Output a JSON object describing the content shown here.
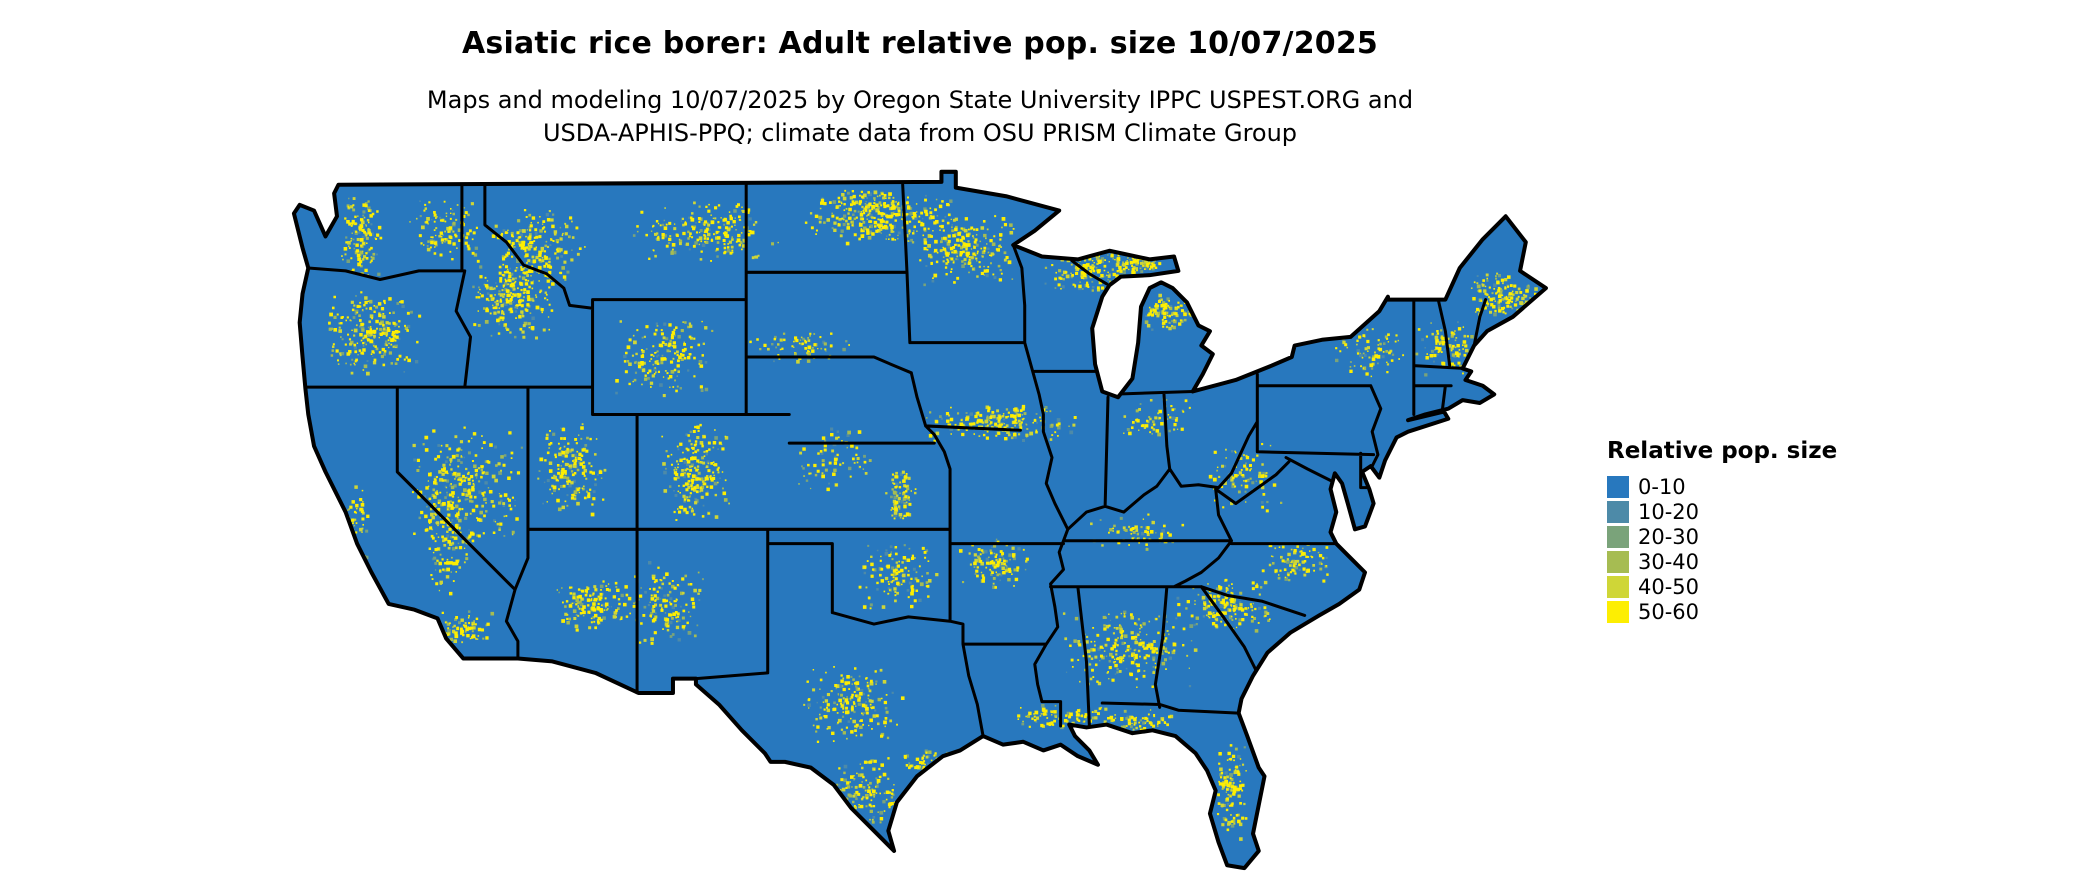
{
  "title": "Asiatic rice borer: Adult relative pop. size 10/07/2025",
  "subtitle": {
    "line1": "Maps and modeling 10/07/2025 by Oregon State University IPPC USPEST.ORG and",
    "line2": "USDA-APHIS-PPQ; climate data from OSU PRISM Climate Group"
  },
  "legend": {
    "title": "Relative pop. size",
    "items": [
      {
        "label": "0-10",
        "color": "#2878be"
      },
      {
        "label": "10-20",
        "color": "#4d8aa8"
      },
      {
        "label": "20-30",
        "color": "#7aa37a"
      },
      {
        "label": "30-40",
        "color": "#a6bc52"
      },
      {
        "label": "40-50",
        "color": "#cfd637"
      },
      {
        "label": "50-60",
        "color": "#fdee02"
      }
    ]
  },
  "map": {
    "name": "Contiguous United States relative population raster",
    "base_color": "#2878be",
    "border_color": "#000000"
  }
}
